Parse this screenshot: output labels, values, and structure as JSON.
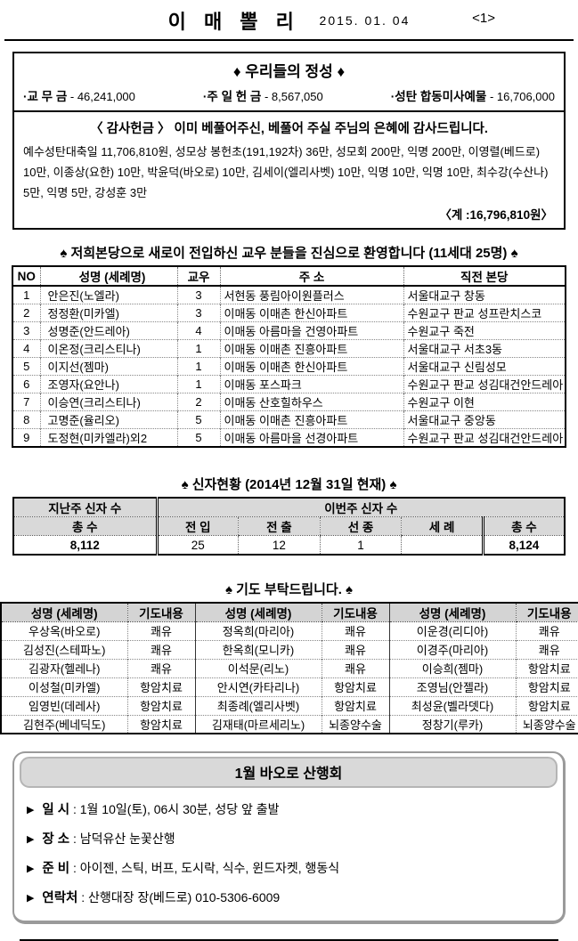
{
  "page": {
    "title": "이 매 뽈 리",
    "date": "2015. 01. 04",
    "page_no": "<1>"
  },
  "colors": {
    "table_header_bg": "#d4d4d4",
    "status_header_bg": "#d9d9d9",
    "hike_header_bg": "#d9d9d9",
    "text": "#000000"
  },
  "offerings": {
    "title": "♦ 우리들의 정성 ♦",
    "items": [
      {
        "label": "·교 무 금",
        "value": "- 46,241,000"
      },
      {
        "label": "·주 일 헌 금",
        "value": "- 8,567,050"
      },
      {
        "label": "·성탄 합동미사예물",
        "value": "- 16,706,000"
      }
    ],
    "thanks_title": "〈 감사헌금 〉  이미 베풀어주신, 베풀어 주실 주님의 은혜에 감사드립니다.",
    "thanks_body": "예수성탄대축일 11,706,810원, 성모상 봉헌초(191,192차) 36만, 성모회 200만, 익명 200만, 이영렬(베드로) 10만, 이종상(요한) 10만, 박윤덕(바오로) 10만, 김세이(엘리사벳) 10만, 익명 10만, 익명 10만, 최수강(수산나) 5만, 익명 5만, 강성훈 3만",
    "total": "〈계 :16,796,810원〉"
  },
  "welcome": {
    "title": "♠ 저희본당으로 새로이 전입하신 교우 분들을 진심으로 환영합니다 (11세대 25명) ♠",
    "headers": [
      "NO",
      "성명 (세례명)",
      "교우",
      "주    소",
      "직전 본당"
    ],
    "rows": [
      [
        "1",
        "안은진(노엘라)",
        "3",
        "서현동 풍림아이원플러스",
        "서울대교구 창동"
      ],
      [
        "2",
        "정정환(미카엘)",
        "3",
        "이매동 이매촌 한신아파트",
        "수원교구 판교 성프란치스코"
      ],
      [
        "3",
        "성명준(안드레아)",
        "4",
        "이매동 아름마을 건영아파트",
        "수원교구 죽전"
      ],
      [
        "4",
        "이온정(크리스티나)",
        "1",
        "이매동 이매촌 진흥아파트",
        "서울대교구 서초3동"
      ],
      [
        "5",
        "이지선(젬마)",
        "1",
        "이매동 이매촌 한신아파트",
        "서울대교구 신림성모"
      ],
      [
        "6",
        "조영자(요안나)",
        "1",
        "이매동 포스파크",
        "수원교구 판교 성김대건안드레아"
      ],
      [
        "7",
        "이승연(크리스티나)",
        "2",
        "이매동 산호힐하우스",
        "수원교구 이현"
      ],
      [
        "8",
        "고명준(율리오)",
        "5",
        "이매동 이매촌 진흥아파트",
        "서울대교구 중앙동"
      ],
      [
        "9",
        "도정현(미카엘라)외2",
        "5",
        "이매동 아름마을 선경아파트",
        "수원교구 판교 성김대건안드레아"
      ]
    ]
  },
  "status": {
    "title": "♠ 신자현황 (2014년 12월 31일 현재) ♠",
    "last_week_header": "지난주 신자 수",
    "this_week_header": "이번주 신자 수",
    "sub_headers": [
      "총 수",
      "전 입",
      "전 출",
      "선 종",
      "세 례",
      "총 수"
    ],
    "values": [
      "8,112",
      "25",
      "12",
      "1",
      "",
      "8,124"
    ]
  },
  "prayer": {
    "title": "♠ 기도 부탁드립니다. ♠",
    "headers": [
      "성명 (세례명)",
      "기도내용",
      "성명 (세례명)",
      "기도내용",
      "성명 (세례명)",
      "기도내용"
    ],
    "rows": [
      [
        "우상옥(바오로)",
        "쾌유",
        "정옥희(마리아)",
        "쾌유",
        "이운경(리디아)",
        "쾌유"
      ],
      [
        "김성진(스테파노)",
        "쾌유",
        "한옥희(모니카)",
        "쾌유",
        "이경주(마리아)",
        "쾌유"
      ],
      [
        "김광자(헬레나)",
        "쾌유",
        "이석문(리노)",
        "쾌유",
        "이승희(젬마)",
        "항암치료"
      ],
      [
        "이성철(미카엘)",
        "항암치료",
        "안시연(카타리나)",
        "항암치료",
        "조영님(안젤라)",
        "항암치료"
      ],
      [
        "임영빈(데레사)",
        "항암치료",
        "최종례(엘리사벳)",
        "항암치료",
        "최성윤(벨라뎃다)",
        "항암치료"
      ],
      [
        "김현주(베네딕도)",
        "항암치료",
        "김재태(마르세리노)",
        "뇌종양수술",
        "정창기(루카)",
        "뇌종양수술"
      ]
    ]
  },
  "hiking": {
    "title": "1월 바오로 산행회",
    "bullet": "▶",
    "items": [
      {
        "label": "일  시",
        "value": ": 1월 10일(토), 06시 30분, 성당 앞 출발"
      },
      {
        "label": "장  소",
        "value": ": 남덕유산 눈꽃산행"
      },
      {
        "label": "준  비",
        "value": ": 아이젠, 스틱, 버프, 도시락, 식수, 윈드자켓, 행동식"
      },
      {
        "label": "연락처",
        "value": ": 산행대장 장(베드로) 010-5306-6009"
      }
    ]
  }
}
